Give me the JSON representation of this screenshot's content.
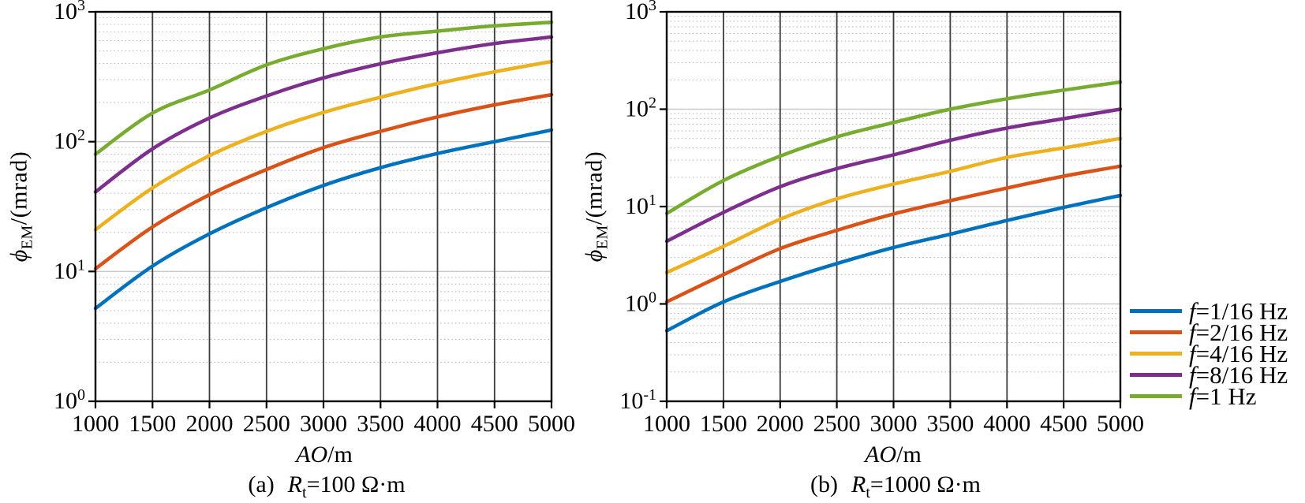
{
  "legend": {
    "items": [
      {
        "sym": "f",
        "label": "=1/16 Hz",
        "color": "#0072BD"
      },
      {
        "sym": "f",
        "label": "=2/16 Hz",
        "color": "#D95319"
      },
      {
        "sym": "f",
        "label": "=4/16 Hz",
        "color": "#EDB120"
      },
      {
        "sym": "f",
        "label": "=8/16 Hz",
        "color": "#7E2F8E"
      },
      {
        "sym": "f",
        "label": "=1 Hz",
        "color": "#77AC30"
      }
    ]
  },
  "panels": [
    {
      "ylabel": {
        "sym": "ϕ",
        "sub": "EM",
        "rest": "/(mrad)"
      },
      "xlabel": {
        "italic": "AO",
        "rest": "/m"
      },
      "caption": {
        "index": "(a)",
        "sym": "R",
        "sub": "t",
        "rest": "=100 Ω·m"
      }
    },
    {
      "ylabel": {
        "sym": "ϕ",
        "sub": "EM",
        "rest": "/(mrad)"
      },
      "xlabel": {
        "italic": "AO",
        "rest": "/m"
      },
      "caption": {
        "index": "(b)",
        "sym": "R",
        "sub": "t",
        "rest": "=1000 Ω·m"
      }
    }
  ],
  "chart_data": [
    {
      "type": "line",
      "panel": "(a)",
      "title": "(a) Rt=100 Ω·m",
      "xlabel": "AO/m",
      "ylabel": "phi_EM/(mrad)",
      "xscale": "linear",
      "yscale": "log",
      "xlim": [
        1000,
        5000
      ],
      "ylim": [
        1,
        1000
      ],
      "x_ticks": [
        1000,
        1500,
        2000,
        2500,
        3000,
        3500,
        4000,
        4500,
        5000
      ],
      "y_tick_exponents": [
        0,
        1,
        2,
        3
      ],
      "grid": {
        "x_major": "solid-dark",
        "y_major": "solid-light",
        "y_minor": "dotted"
      },
      "legend_position": "none",
      "x": [
        1000,
        1500,
        2000,
        2500,
        3000,
        3500,
        4000,
        4500,
        5000
      ],
      "series": [
        {
          "name": "f=1/16 Hz",
          "color": "#0072BD",
          "values": [
            5.2,
            11,
            19.5,
            31,
            46,
            63,
            81,
            100,
            123
          ]
        },
        {
          "name": "f=2/16 Hz",
          "color": "#D95319",
          "values": [
            10.5,
            22,
            39,
            61,
            90,
            120,
            155,
            192,
            230
          ]
        },
        {
          "name": "f=4/16 Hz",
          "color": "#EDB120",
          "values": [
            21,
            44,
            78,
            120,
            168,
            220,
            280,
            345,
            414
          ]
        },
        {
          "name": "f=8/16 Hz",
          "color": "#7E2F8E",
          "values": [
            41,
            88,
            152,
            225,
            310,
            398,
            484,
            570,
            640
          ]
        },
        {
          "name": "f=1 Hz",
          "color": "#77AC30",
          "values": [
            80,
            166,
            250,
            390,
            520,
            640,
            710,
            780,
            830
          ]
        }
      ]
    },
    {
      "type": "line",
      "panel": "(b)",
      "title": "(b) Rt=1000 Ω·m",
      "xlabel": "AO/m",
      "ylabel": "phi_EM/(mrad)",
      "xscale": "linear",
      "yscale": "log",
      "xlim": [
        1000,
        5000
      ],
      "ylim": [
        0.1,
        1000
      ],
      "x_ticks": [
        1000,
        1500,
        2000,
        2500,
        3000,
        3500,
        4000,
        4500,
        5000
      ],
      "y_tick_exponents": [
        -1,
        0,
        1,
        2,
        3
      ],
      "grid": {
        "x_major": "solid-dark",
        "y_major": "solid-light",
        "y_minor": "dotted"
      },
      "legend_position": "outside-right",
      "x": [
        1000,
        1500,
        2000,
        2500,
        3000,
        3500,
        4000,
        4500,
        5000
      ],
      "series": [
        {
          "name": "f=1/16 Hz",
          "color": "#0072BD",
          "values": [
            0.53,
            1.05,
            1.7,
            2.6,
            3.8,
            5.2,
            7.2,
            9.8,
            13
          ]
        },
        {
          "name": "f=2/16 Hz",
          "color": "#D95319",
          "values": [
            1.05,
            2.0,
            3.7,
            5.7,
            8.4,
            11.5,
            15.5,
            20.5,
            26
          ]
        },
        {
          "name": "f=4/16 Hz",
          "color": "#EDB120",
          "values": [
            2.1,
            3.9,
            7.4,
            12,
            17,
            23,
            32,
            40,
            50
          ]
        },
        {
          "name": "f=8/16 Hz",
          "color": "#7E2F8E",
          "values": [
            4.4,
            8.7,
            16,
            24.5,
            34,
            48,
            64,
            80,
            100
          ]
        },
        {
          "name": "f=1 Hz",
          "color": "#77AC30",
          "values": [
            8.5,
            18.5,
            33,
            52,
            73,
            100,
            128,
            157,
            190
          ]
        }
      ]
    }
  ]
}
